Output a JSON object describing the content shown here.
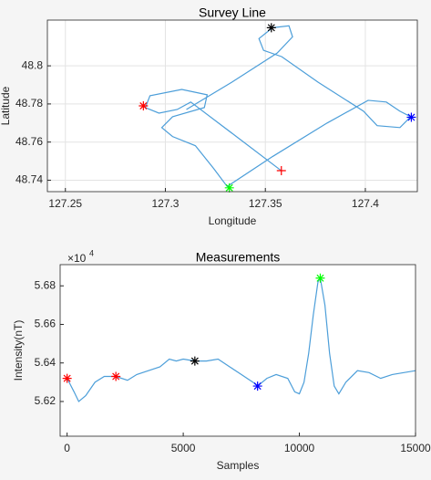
{
  "chart_data": [
    {
      "type": "line",
      "title": "Survey Line",
      "xlabel": "Longitude",
      "ylabel": "Latitude",
      "xlim": [
        127.241,
        127.426
      ],
      "xticks": [
        127.25,
        127.3,
        127.35,
        127.4
      ],
      "ylim": [
        48.734,
        48.824
      ],
      "yticks": [
        48.74,
        48.76,
        48.78,
        48.8
      ],
      "grid": true,
      "series": [
        {
          "color": "#4c9ed9",
          "x": [
            127.3582,
            127.3355,
            127.3127,
            127.3059,
            127.2968,
            127.29,
            127.2923,
            127.3082,
            127.3209,
            127.3195,
            127.3036,
            127.2982,
            127.3036,
            127.315,
            127.3241,
            127.3309,
            127.3536,
            127.3809,
            127.4014,
            127.4105,
            127.4173,
            127.4227,
            127.4173,
            127.4059,
            127.3991,
            127.3764,
            127.3582,
            127.3491,
            127.3468,
            127.3536,
            127.3618,
            127.3636,
            127.3559,
            127.3332,
            127.3105
          ],
          "values": [
            48.7448,
            48.7629,
            48.781,
            48.7771,
            48.7752,
            48.7781,
            48.7843,
            48.7876,
            48.7848,
            48.7781,
            48.7733,
            48.7676,
            48.7629,
            48.7581,
            48.7462,
            48.7367,
            48.7524,
            48.77,
            48.7819,
            48.781,
            48.7762,
            48.7733,
            48.7676,
            48.7686,
            48.7762,
            48.7914,
            48.8048,
            48.8081,
            48.8143,
            48.82,
            48.821,
            48.8152,
            48.8067,
            48.7914,
            48.7771
          ]
        }
      ],
      "markers": [
        {
          "x": 127.289,
          "y": 48.779,
          "color": "#ff0000",
          "marker": "*"
        },
        {
          "x": 127.353,
          "y": 48.82,
          "color": "#000000",
          "marker": "*"
        },
        {
          "x": 127.423,
          "y": 48.773,
          "color": "#0000ff",
          "marker": "*"
        },
        {
          "x": 127.332,
          "y": 48.736,
          "color": "#00ff00",
          "marker": "*"
        },
        {
          "x": 127.358,
          "y": 48.745,
          "color": "#ff0000",
          "marker": "+"
        }
      ]
    },
    {
      "type": "line",
      "title": "Measurements",
      "xlabel": "Samples",
      "ylabel": "Intensity(nT)",
      "exponent": {
        "base": "×10",
        "power": "4"
      },
      "xlim": [
        -300,
        15000
      ],
      "xticks": [
        0,
        5000,
        10000,
        15000
      ],
      "ylim": [
        5.602,
        5.691
      ],
      "yticks": [
        5.62,
        5.64,
        5.66,
        5.68
      ],
      "grid": false,
      "series": [
        {
          "color": "#4c9ed9",
          "x": [
            0,
            300,
            500,
            800,
            1200,
            1600,
            2100,
            2600,
            3000,
            3500,
            4000,
            4400,
            4700,
            5000,
            5500,
            6000,
            6500,
            7000,
            7500,
            8000,
            8200,
            8600,
            9000,
            9500,
            9800,
            10000,
            10200,
            10400,
            10600,
            10800,
            10900,
            11100,
            11300,
            11500,
            11700,
            12000,
            12500,
            13000,
            13500,
            14000,
            14500,
            15000
          ],
          "values": [
            5.632,
            5.625,
            5.62,
            5.623,
            5.63,
            5.633,
            5.633,
            5.631,
            5.634,
            5.636,
            5.638,
            5.642,
            5.641,
            5.642,
            5.641,
            5.641,
            5.642,
            5.638,
            5.634,
            5.63,
            5.628,
            5.632,
            5.634,
            5.632,
            5.625,
            5.624,
            5.63,
            5.645,
            5.665,
            5.682,
            5.684,
            5.67,
            5.645,
            5.628,
            5.624,
            5.63,
            5.636,
            5.635,
            5.632,
            5.634,
            5.635,
            5.636
          ]
        }
      ],
      "markers": [
        {
          "x": 0,
          "y": 5.632,
          "color": "#ff0000",
          "marker": "*"
        },
        {
          "x": 2100,
          "y": 5.633,
          "color": "#ff0000",
          "marker": "*"
        },
        {
          "x": 5500,
          "y": 5.641,
          "color": "#000000",
          "marker": "*"
        },
        {
          "x": 8200,
          "y": 5.628,
          "color": "#0000ff",
          "marker": "*"
        },
        {
          "x": 10900,
          "y": 5.684,
          "color": "#00ff00",
          "marker": "*"
        }
      ]
    }
  ]
}
